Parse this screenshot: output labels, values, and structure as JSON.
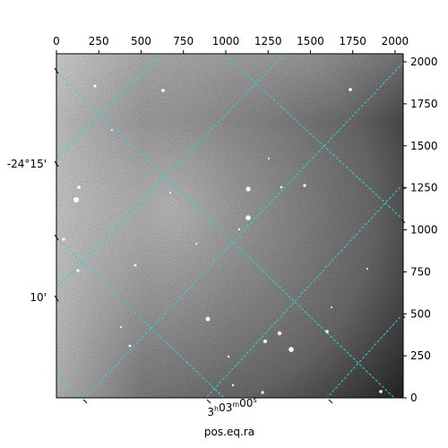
{
  "figure": {
    "x_axis_top": {
      "ticks": [
        "0",
        "250",
        "500",
        "750",
        "1000",
        "1250",
        "1500",
        "1750",
        "2000"
      ]
    },
    "y_axis_right": {
      "ticks": [
        "0",
        "250",
        "500",
        "750",
        "1000",
        "1250",
        "1500",
        "1750",
        "2000"
      ]
    },
    "wcs_left": {
      "ticks": [
        "-24°15'",
        "10'"
      ]
    },
    "wcs_bottom": {
      "ra_tick": "3h03m00s",
      "label": "pos.eq.ra"
    },
    "colors": {
      "grid": "#2fd3d3",
      "image_bright": "#d9d9d9",
      "image_mid": "#8c8c8c",
      "image_dark": "#2a2a2a",
      "star": "#ffffff"
    }
  }
}
